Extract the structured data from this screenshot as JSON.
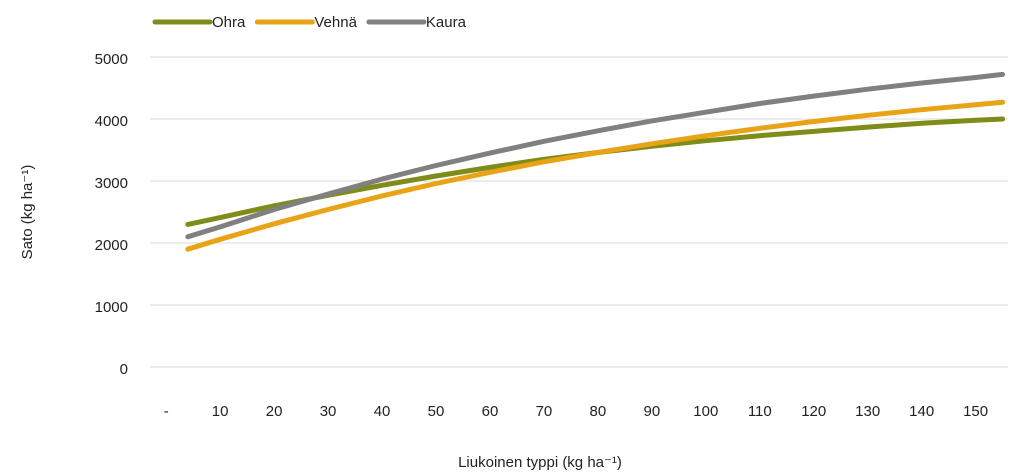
{
  "chart_data": {
    "type": "line",
    "xlabel": "Liukoinen typpi (kg ha⁻¹)",
    "ylabel": "Sato (kg ha⁻¹)",
    "x": [
      4,
      10,
      20,
      30,
      40,
      50,
      60,
      70,
      80,
      90,
      100,
      110,
      120,
      130,
      140,
      150,
      155
    ],
    "series": [
      {
        "name": "Ohra",
        "color": "#7f8c1a",
        "values": [
          2300,
          2410,
          2600,
          2770,
          2930,
          3080,
          3220,
          3350,
          3460,
          3560,
          3650,
          3730,
          3800,
          3870,
          3930,
          3980,
          4000
        ]
      },
      {
        "name": "Vehnä",
        "color": "#e8a317",
        "values": [
          1900,
          2060,
          2310,
          2540,
          2760,
          2960,
          3140,
          3310,
          3460,
          3600,
          3730,
          3850,
          3960,
          4060,
          4150,
          4230,
          4270
        ]
      },
      {
        "name": "Kaura",
        "color": "#808080",
        "values": [
          2100,
          2260,
          2540,
          2790,
          3030,
          3250,
          3450,
          3640,
          3810,
          3970,
          4110,
          4250,
          4370,
          4480,
          4580,
          4670,
          4720
        ]
      }
    ],
    "xlim": [
      -3,
      156
    ],
    "xticks": [
      {
        "value": 0,
        "label": "-"
      },
      10,
      20,
      30,
      40,
      50,
      60,
      70,
      80,
      90,
      100,
      110,
      120,
      130,
      140,
      150
    ],
    "ylim": [
      0,
      5000
    ],
    "yticks": [
      0,
      1000,
      2000,
      3000,
      4000,
      5000
    ],
    "grid": true,
    "legend": "top-left"
  }
}
